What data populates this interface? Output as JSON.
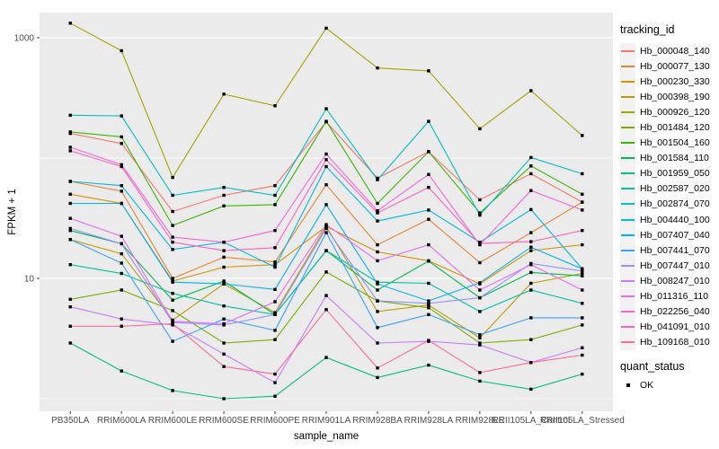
{
  "colors": {
    "background": "#FFFFFF",
    "panel": "#EBEBEB",
    "grid_major": "#FFFFFF",
    "grid_minor": "#FFFFFF",
    "axis_text": "#4D4D4D",
    "tick_mark": "#333333",
    "point": "#000000",
    "legend_key": "#F2F2F2"
  },
  "chart_data": {
    "type": "line",
    "title": "",
    "xlabel": "sample_name",
    "ylabel": "FPKM + 1",
    "y_scale": "log10",
    "legend_position": "right",
    "grid": true,
    "point_shape": "filled-square",
    "ylim": [
      0.75,
      1600
    ],
    "y_ticks": [
      {
        "label": "10",
        "value": 10
      },
      {
        "label": "1000",
        "value": 1000
      }
    ],
    "y_minor_gridlines": [
      1,
      100
    ],
    "categories": [
      "PB350LA",
      "RRIM600LA",
      "RRIM600LE",
      "RRIM600SE",
      "RRIM600PE",
      "RRIM901LA",
      "RRIM928BA",
      "RRIM928LA",
      "RRIM928LE",
      "RRII105LA_Control",
      "RRII105LA_Stressed"
    ],
    "series": [
      {
        "name": "Hb_000048_140",
        "color": "#F8766D",
        "values": [
          160,
          132,
          36,
          49,
          59,
          200,
          68,
          113,
          45,
          74,
          43
        ]
      },
      {
        "name": "Hb_000077_130",
        "color": "#EA8331",
        "values": [
          64,
          53,
          10,
          15,
          13.7,
          60,
          19,
          31,
          13.5,
          24,
          43
        ]
      },
      {
        "name": "Hb_000230_330",
        "color": "#D89000",
        "values": [
          50,
          42,
          9.5,
          12.4,
          13,
          27,
          16.6,
          14,
          9,
          17,
          19
        ]
      },
      {
        "name": "Hb_000398_190",
        "color": "#C09B00",
        "values": [
          21,
          16,
          4.5,
          9,
          5.2,
          27,
          5.3,
          6,
          3.2,
          9.1,
          11
        ]
      },
      {
        "name": "Hb_000926_120",
        "color": "#A3A500",
        "values": [
          1320,
          780,
          69,
          340,
          272,
          1200,
          560,
          530,
          175,
          363,
          154
        ]
      },
      {
        "name": "Hb_001484_120",
        "color": "#7CAE00",
        "values": [
          6.7,
          8,
          5.4,
          2.9,
          3.1,
          11.3,
          6.5,
          5.7,
          2.9,
          3.1,
          4.1
        ]
      },
      {
        "name": "Hb_001504_160",
        "color": "#39B600",
        "values": [
          165,
          150,
          27.5,
          40,
          41,
          202,
          42,
          113,
          35,
          86,
          50
        ]
      },
      {
        "name": "Hb_001584_110",
        "color": "#00BB4E",
        "values": [
          25,
          19.4,
          6.6,
          9.5,
          5,
          17,
          8,
          13.9,
          6.9,
          11.2,
          10.5
        ]
      },
      {
        "name": "Hb_001959_050",
        "color": "#00BF7D",
        "values": [
          2.9,
          1.7,
          1.17,
          1,
          1.05,
          2.2,
          1.5,
          1.9,
          1.4,
          1.2,
          1.6
        ]
      },
      {
        "name": "Hb_002587_020",
        "color": "#00C1A3",
        "values": [
          13,
          11,
          7.5,
          5.9,
          5,
          17,
          9.3,
          9.1,
          5.3,
          8,
          6.2
        ]
      },
      {
        "name": "Hb_002874_070",
        "color": "#00BFC4",
        "values": [
          227,
          224,
          49,
          57,
          49,
          257,
          66,
          202,
          33.5,
          101,
          74
        ]
      },
      {
        "name": "Hb_004440_100",
        "color": "#00BAE0",
        "values": [
          64,
          59,
          17.4,
          20,
          12.4,
          85,
          30,
          37,
          20,
          37.3,
          12
        ]
      },
      {
        "name": "Hb_007407_040",
        "color": "#00B0F6",
        "values": [
          42,
          42,
          9.3,
          9,
          8.1,
          41,
          9,
          6.5,
          9.2,
          18.2,
          12
        ]
      },
      {
        "name": "Hb_007441_070",
        "color": "#35A2FF",
        "values": [
          21,
          13.4,
          3,
          4.6,
          3.7,
          24,
          3.9,
          5,
          3.4,
          4.7,
          4.7
        ]
      },
      {
        "name": "Hb_007447_010",
        "color": "#9590FF",
        "values": [
          26,
          19.4,
          4.3,
          4.1,
          5,
          26,
          6.5,
          6.2,
          6.9,
          13.3,
          11.5
        ]
      },
      {
        "name": "Hb_008247_010",
        "color": "#C77CFF",
        "values": [
          5.8,
          4.6,
          4.1,
          2.35,
          1.36,
          7.2,
          2.9,
          3,
          2.8,
          2,
          2.65
        ]
      },
      {
        "name": "Hb_011316_110",
        "color": "#E76BF3",
        "values": [
          31.5,
          22.4,
          4.4,
          4.2,
          6.4,
          28,
          14,
          19,
          8,
          13,
          8
        ]
      },
      {
        "name": "Hb_022256_040",
        "color": "#FA62DB",
        "values": [
          123,
          88,
          22,
          20,
          25,
          108,
          36.5,
          73,
          19,
          53.7,
          37
        ]
      },
      {
        "name": "Hb_041091_010",
        "color": "#FF62BC",
        "values": [
          115,
          85,
          20,
          17,
          18,
          97,
          35,
          57,
          19.5,
          20.2,
          25
        ]
      },
      {
        "name": "Hb_109168_010",
        "color": "#FF6A98",
        "values": [
          4,
          4,
          4.2,
          1.85,
          1.6,
          5.5,
          1.8,
          3.05,
          1.65,
          2,
          2.3
        ]
      }
    ]
  },
  "legend": {
    "tracking_title": "tracking_id",
    "quant_title": "quant_status",
    "quant_items": [
      {
        "label": "OK"
      }
    ]
  }
}
